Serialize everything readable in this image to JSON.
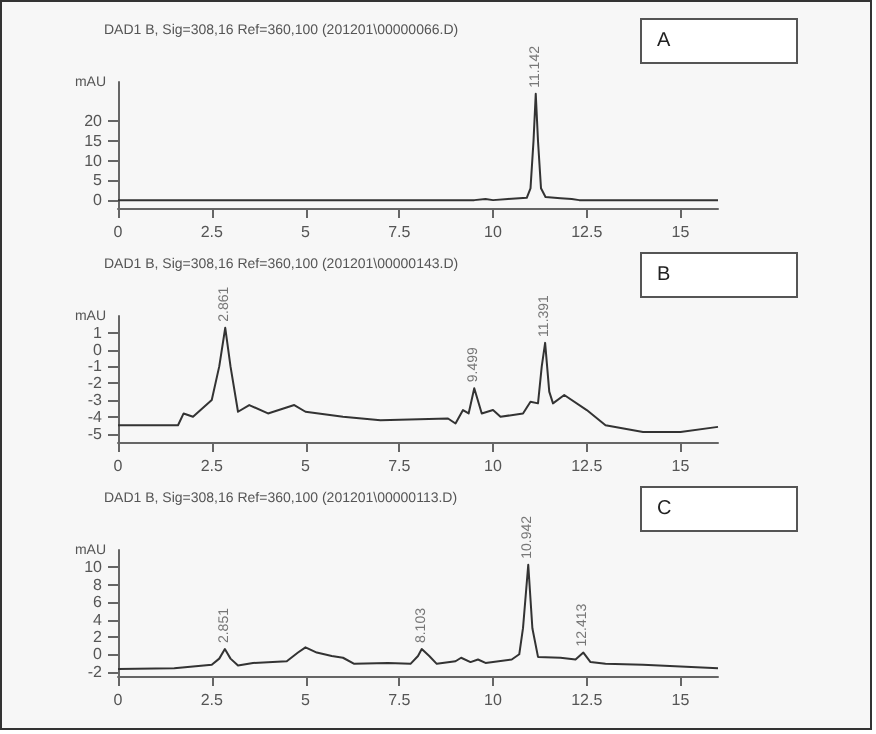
{
  "chart_data": [
    {
      "type": "line",
      "title": "DAD1 B, Sig=308,16 Ref=360,100 (201201\\00000066.D)",
      "ylabel": "mAU",
      "color": "#333333",
      "marker": "none",
      "grid": false,
      "x": [
        0,
        9.5,
        9.8,
        10,
        10.4,
        10.7,
        10.9,
        11.0,
        11.08,
        11.14,
        11.2,
        11.28,
        11.4,
        11.8,
        12.1,
        12.3,
        16
      ],
      "values": [
        0,
        0,
        0.3,
        0,
        0.3,
        0.5,
        0.6,
        3,
        15,
        27,
        15,
        3,
        0.8,
        0.5,
        0.3,
        0,
        0
      ],
      "xlim": [
        0,
        16
      ],
      "xticks": [
        0,
        2.5,
        5,
        7.5,
        10,
        12.5,
        15
      ],
      "ylim": [
        -2,
        30
      ],
      "yticks": [
        0,
        5,
        10,
        15,
        20
      ],
      "annotations": [
        "A",
        {
          "text": "11.142",
          "x": 11.14,
          "y": 27
        }
      ]
    },
    {
      "type": "line",
      "title": "DAD1 B, Sig=308,16 Ref=360,100 (201201\\00000143.D)",
      "ylabel": "mAU",
      "color": "#333333",
      "marker": "none",
      "grid": false,
      "x": [
        0,
        1.6,
        1.75,
        2.0,
        2.5,
        2.7,
        2.86,
        3.0,
        3.2,
        3.5,
        4.0,
        4.7,
        5.0,
        6,
        7,
        8.8,
        9.0,
        9.2,
        9.35,
        9.5,
        9.7,
        10.0,
        10.2,
        10.8,
        11.0,
        11.2,
        11.3,
        11.39,
        11.5,
        11.6,
        11.9,
        12.5,
        13,
        14,
        15,
        16
      ],
      "values": [
        -4.5,
        -4.5,
        -3.8,
        -4,
        -3,
        -1,
        1.3,
        -1,
        -3.7,
        -3.3,
        -3.8,
        -3.3,
        -3.7,
        -4,
        -4.2,
        -4.1,
        -4.4,
        -3.6,
        -3.8,
        -2.3,
        -3.8,
        -3.6,
        -4,
        -3.8,
        -3.1,
        -3.2,
        -1,
        0.4,
        -2.5,
        -3.2,
        -2.7,
        -3.6,
        -4.5,
        -4.9,
        -4.9,
        -4.6
      ],
      "xlim": [
        0,
        16
      ],
      "xticks": [
        0,
        2.5,
        5,
        7.5,
        10,
        12.5,
        15
      ],
      "ylim": [
        -5.5,
        2
      ],
      "yticks": [
        -5,
        -4,
        -3,
        -2,
        -1,
        0,
        1
      ],
      "annotations": [
        "B",
        {
          "text": "2.861",
          "x": 2.86,
          "y": 1.3
        },
        {
          "text": "9.499",
          "x": 9.5,
          "y": -2.3
        },
        {
          "text": "11.391",
          "x": 11.39,
          "y": 0.4
        }
      ]
    },
    {
      "type": "line",
      "title": "DAD1 B, Sig=308,16 Ref=360,100 (201201\\00000113.D)",
      "ylabel": "mAU",
      "color": "#333333",
      "marker": "none",
      "grid": false,
      "x": [
        0,
        1.5,
        2.5,
        2.7,
        2.85,
        3.0,
        3.2,
        3.6,
        4.5,
        4.8,
        5.0,
        5.3,
        5.7,
        6.0,
        6.3,
        7.2,
        7.8,
        8.0,
        8.1,
        8.3,
        8.5,
        9.0,
        9.15,
        9.4,
        9.6,
        9.8,
        10.5,
        10.7,
        10.8,
        10.94,
        11.05,
        11.2,
        11.8,
        12.2,
        12.41,
        12.6,
        13,
        14,
        15,
        16
      ],
      "values": [
        -1.7,
        -1.6,
        -1.2,
        -0.5,
        0.6,
        -0.5,
        -1.3,
        -1.0,
        -0.8,
        0.2,
        0.8,
        0.2,
        -0.2,
        -0.4,
        -1.1,
        -1.0,
        -1.1,
        -0.2,
        0.6,
        -0.2,
        -1.1,
        -0.8,
        -0.4,
        -0.9,
        -0.6,
        -1.0,
        -0.6,
        0,
        3,
        10.3,
        3,
        -0.3,
        -0.4,
        -0.6,
        0.2,
        -0.9,
        -1.1,
        -1.2,
        -1.4,
        -1.6
      ],
      "xlim": [
        0,
        16
      ],
      "xticks": [
        0,
        2.5,
        5,
        7.5,
        10,
        12.5,
        15
      ],
      "ylim": [
        -2.5,
        12
      ],
      "yticks": [
        -2,
        0,
        2,
        4,
        6,
        8,
        10
      ],
      "annotations": [
        "C",
        {
          "text": "2.851",
          "x": 2.85,
          "y": 0.6
        },
        {
          "text": "8.103",
          "x": 8.1,
          "y": 0.6
        },
        {
          "text": "10.942",
          "x": 10.94,
          "y": 10.3
        },
        {
          "text": "12.413",
          "x": 12.41,
          "y": 0.2
        }
      ]
    }
  ]
}
